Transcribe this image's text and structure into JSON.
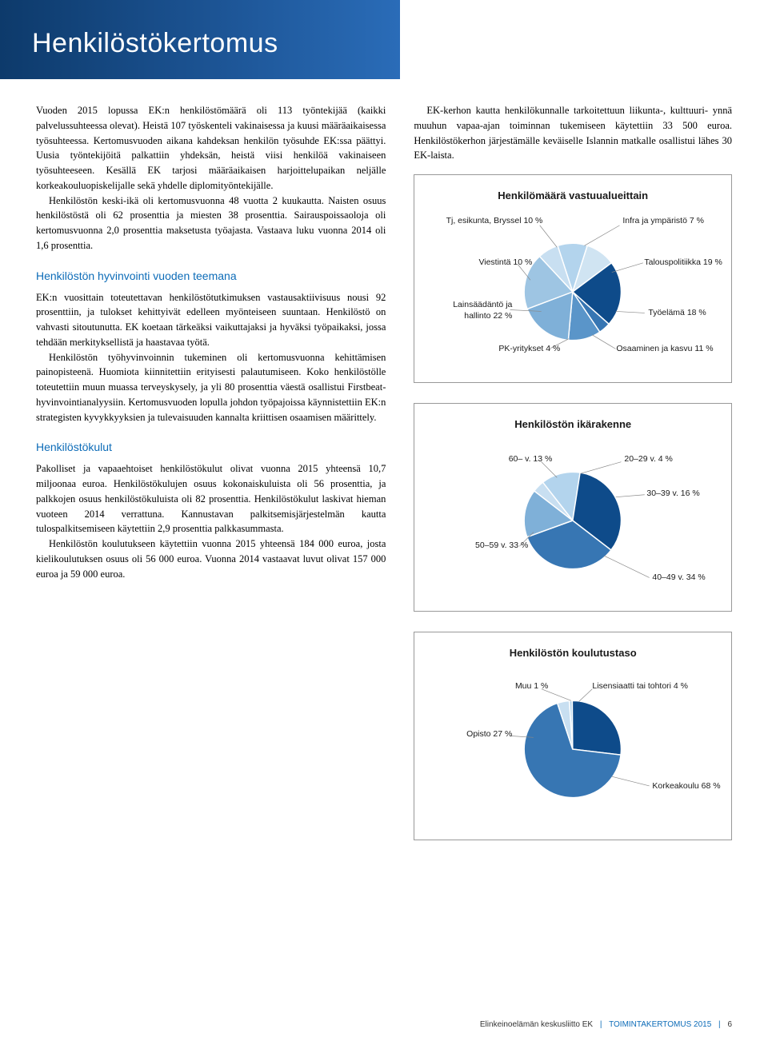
{
  "header": {
    "title": "Henkilöstökertomus"
  },
  "intro": {
    "p1": "Vuoden 2015 lopussa EK:n henkilöstömäärä oli 113 työntekijää (kaikki palvelussuhteessa olevat). Heistä 107 työskenteli vakinaisessa ja kuusi määräaikaisessa työsuhteessa. Kertomusvuoden aikana kahdeksan henkilön työsuhde EK:ssa päättyi. Uusia työntekijöitä palkattiin yhdeksän, heistä viisi henkilöä vakinaiseen työsuhteeseen. Kesällä EK tarjosi määräaikaisen harjoittelupaikan neljälle korkeakouluopiskelijalle sekä yhdelle diplomityöntekijälle.",
    "p2": "Henkilöstön keski-ikä oli kertomusvuonna 48 vuotta 2 kuukautta. Naisten osuus henkilöstöstä oli 62 prosenttia ja miesten 38 prosenttia. Sairauspoissaoloja oli kertomusvuonna 2,0 prosenttia maksetusta työajasta. Vastaava luku vuonna 2014 oli 1,6 prosenttia.",
    "right_p": "EK-kerhon kautta henkilökunnalle tarkoitettuun liikunta-, kulttuuri- ynnä muuhun vapaa-ajan toiminnan tukemiseen käytettiin 33 500 euroa. Henkilöstökerhon järjestämälle keväiselle Islannin matkalle osallistui lähes 30 EK-laista."
  },
  "wellbeing": {
    "heading": "Henkilöstön hyvinvointi vuoden teemana",
    "p1": "EK:n vuosittain toteutettavan henkilöstötutkimuksen vastausaktiivisuus nousi 92 prosenttiin, ja tulokset kehittyivät edelleen myönteiseen suuntaan. Henkilöstö on vahvasti sitoutunutta. EK koetaan tärkeäksi vaikuttajaksi ja hyväksi työpaikaksi, jossa tehdään merkityksellistä ja haastavaa työtä.",
    "p2": "Henkilöstön työhyvinvoinnin tukeminen oli kertomusvuonna kehittämisen painopisteenä. Huomiota kiinnitettiin erityisesti palautumiseen. Koko henkilöstölle toteutettiin muun muassa terveyskysely, ja yli 80 prosenttia väestä osallistui Firstbeat-hyvinvointianalyysiin. Kertomusvuoden lopulla johdon työpajoissa käynnistettiin EK:n strategisten kyvykkyyksien ja tulevaisuuden kannalta kriittisen osaamisen määrittely."
  },
  "costs": {
    "heading": "Henkilöstökulut",
    "p1": "Pakolliset ja vapaaehtoiset henkilöstökulut olivat vuonna 2015 yhteensä 10,7 miljoonaa euroa. Henkilöstökulujen osuus kokonaiskuluista oli 56 prosenttia, ja palkkojen osuus henkilöstökuluista oli 82 prosenttia. Henkilöstökulut laskivat hieman vuoteen 2014 verrattuna. Kannustavan palkitsemisjärjestelmän kautta tulospalkitsemiseen käytettiin 2,9 prosenttia palkkasummasta.",
    "p2": "Henkilöstön koulutukseen käytettiin vuonna 2015 yhteensä 184 000 euroa, josta kielikoulutuksen osuus oli 56 000 euroa. Vuonna 2014 vastaavat luvut olivat 157 000 euroa ja 59 000 euroa."
  },
  "chart1": {
    "type": "pie",
    "title": "Henkilömäärä vastuualueittain",
    "colors": {
      "tj": "#b3d4ed",
      "viestinta": "#d0e4f2",
      "lainsaadanto": "#0e4b8a",
      "pk": "#3776b3",
      "osaaminen": "#5a95c9",
      "tyoelama": "#7fb0d8",
      "talous": "#9ec5e3",
      "infra": "#c8dff1"
    },
    "slices": [
      {
        "key": "tj",
        "label": "Tj, esikunta, Bryssel 10 %",
        "value": 10
      },
      {
        "key": "viestinta",
        "label": "Viestintä 10 %",
        "value": 10
      },
      {
        "key": "lainsaadanto",
        "label": "Lainsäädäntö ja hallinto 22 %",
        "value": 22
      },
      {
        "key": "pk",
        "label": "PK-yritykset  4 %",
        "value": 4
      },
      {
        "key": "osaaminen",
        "label": "Osaaminen ja kasvu 11 %",
        "value": 11
      },
      {
        "key": "tyoelama",
        "label": "Työelämä 18 %",
        "value": 18
      },
      {
        "key": "talous",
        "label": "Talouspolitiikka 19 %",
        "value": 19
      },
      {
        "key": "infra",
        "label": "Infra ja ympäristö 7 %",
        "value": 7
      }
    ]
  },
  "chart2": {
    "type": "pie",
    "title": "Henkilöstön ikärakenne",
    "colors": {
      "60": "#b3d4ed",
      "50": "#0e4b8a",
      "40": "#3776b3",
      "30": "#7fb0d8",
      "20": "#c8dff1"
    },
    "slices": [
      {
        "key": "60",
        "label": "60– v. 13 %",
        "value": 13
      },
      {
        "key": "50",
        "label": "50–59 v. 33 %",
        "value": 33
      },
      {
        "key": "40",
        "label": "40–49 v. 34 %",
        "value": 34
      },
      {
        "key": "30",
        "label": "30–39 v. 16 %",
        "value": 16
      },
      {
        "key": "20",
        "label": "20–29 v. 4 %",
        "value": 4
      }
    ]
  },
  "chart3": {
    "type": "pie",
    "title": "Henkilöstön koulutustaso",
    "colors": {
      "muu": "#b3d4ed",
      "opisto": "#0e4b8a",
      "korkea": "#3776b3",
      "lisensiaatti": "#c8dff1"
    },
    "slices": [
      {
        "key": "muu",
        "label": "Muu 1 %",
        "value": 1
      },
      {
        "key": "opisto",
        "label": "Opisto 27 %",
        "value": 27
      },
      {
        "key": "korkea",
        "label": "Korkeakoulu 68 %",
        "value": 68
      },
      {
        "key": "lisensiaatti",
        "label": "Lisensiaatti tai tohtori 4 %",
        "value": 4
      }
    ]
  },
  "footer": {
    "org": "Elinkeinoelämän keskusliitto EK",
    "doc": "TOIMINTAKERTOMUS 2015",
    "page": "6"
  }
}
